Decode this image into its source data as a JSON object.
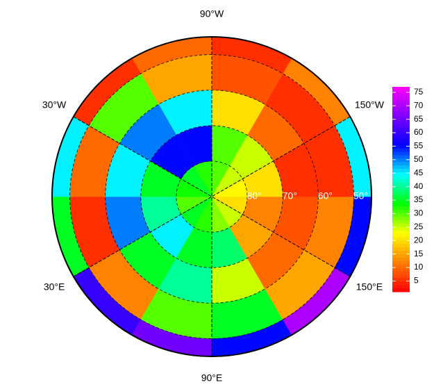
{
  "map": {
    "type": "polar-heatmap",
    "lon_labels": [
      {
        "value": -90,
        "label": "90°W"
      },
      {
        "value": -30,
        "label": "30°W"
      },
      {
        "value": -150,
        "label": "150°W"
      },
      {
        "value": 30,
        "label": "30°E"
      },
      {
        "value": 150,
        "label": "150°E"
      },
      {
        "value": 90,
        "label": "90°E"
      }
    ],
    "lat_ticks": [
      {
        "value": 80,
        "label": "80°"
      },
      {
        "value": 70,
        "label": "70°"
      },
      {
        "value": 60,
        "label": "60°"
      },
      {
        "value": 50,
        "label": "50°"
      }
    ],
    "lat_edges": [
      90,
      80,
      70,
      60,
      50,
      45
    ],
    "lon_edges": [
      0,
      30,
      60,
      90,
      120,
      150,
      180,
      210,
      240,
      270,
      300,
      330,
      360
    ],
    "values": [
      [
        30,
        35,
        32,
        28,
        25,
        20,
        22,
        25,
        30,
        32,
        35,
        33
      ],
      [
        40,
        45,
        35,
        38,
        15,
        12,
        20,
        25,
        30,
        55,
        55,
        35
      ],
      [
        50,
        35,
        40,
        25,
        10,
        8,
        5,
        10,
        20,
        45,
        50,
        45
      ],
      [
        5,
        12,
        30,
        35,
        15,
        12,
        5,
        5,
        8,
        15,
        30,
        10
      ],
      [
        35,
        60,
        65,
        55,
        70,
        55,
        45,
        12,
        5,
        10,
        5,
        45
      ]
    ],
    "grid_dashed": true
  },
  "colorbar": {
    "clim": [
      1,
      77
    ],
    "ticks": [
      5,
      10,
      15,
      20,
      25,
      30,
      35,
      40,
      45,
      50,
      55,
      60,
      65,
      70,
      75
    ],
    "colors": [
      "#ff0000",
      "#ff8000",
      "#ffff00",
      "#00ff00",
      "#00ffff",
      "#0000ff",
      "#8000ff",
      "#ff00ff"
    ]
  }
}
